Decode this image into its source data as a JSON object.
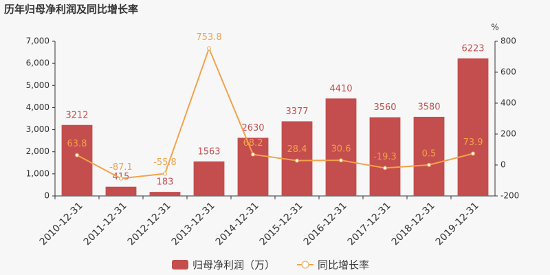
{
  "chart_data": {
    "type": "combo",
    "title": "历年归母净利润及同比增长率",
    "categories": [
      "2010-12-31",
      "2011-12-31",
      "2012-12-31",
      "2013-12-31",
      "2014-12-31",
      "2015-12-31",
      "2016-12-31",
      "2017-12-31",
      "2018-12-31",
      "2019-12-31"
    ],
    "series": [
      {
        "name": "归母净利润（万）",
        "type": "bar",
        "color": "#c44d4d",
        "values": [
          3212,
          415,
          183,
          1563,
          2630,
          3377,
          4410,
          3560,
          3580,
          6223
        ]
      },
      {
        "name": "同比增长率",
        "type": "line",
        "axis": "y2",
        "color": "#f3a24a",
        "values": [
          63.8,
          -87.1,
          -55.8,
          753.8,
          68.2,
          28.4,
          30.6,
          -19.3,
          0.5,
          73.9
        ]
      }
    ],
    "ylim": [
      0,
      7000
    ],
    "yticks": [
      0,
      {
        "value": 1000,
        "label": "1,000"
      },
      {
        "value": 2000,
        "label": "2,000"
      },
      {
        "value": 3000,
        "label": "3,000"
      },
      {
        "value": 4000,
        "label": "4,000"
      },
      {
        "value": 5000,
        "label": "5,000"
      },
      {
        "value": 6000,
        "label": "6,000"
      },
      {
        "value": 7000,
        "label": "7,000"
      }
    ],
    "y2lim": [
      -200,
      800
    ],
    "y2ticks": [
      -200,
      0,
      200,
      400,
      600,
      800
    ],
    "y2_unit": "%",
    "grid": false
  }
}
